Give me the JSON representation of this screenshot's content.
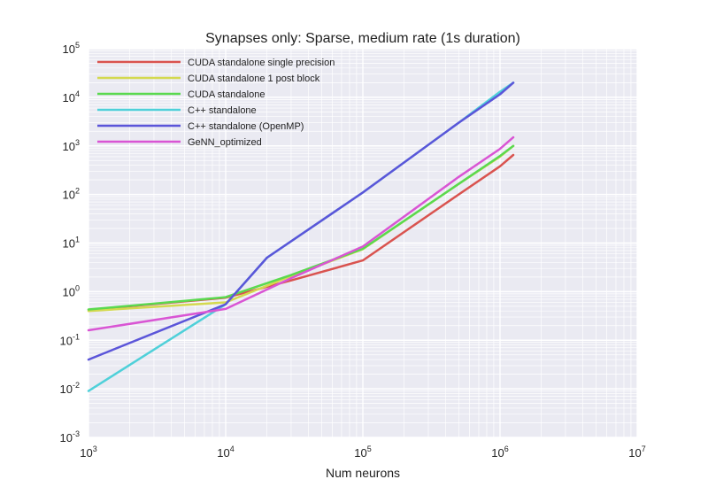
{
  "chart_data": {
    "type": "line",
    "title": "Synapses only: Sparse, medium rate (1s duration)",
    "xlabel": "Num neurons",
    "ylabel": "",
    "x_scale": "log",
    "y_scale": "log",
    "xlim": [
      1000,
      10000000
    ],
    "ylim": [
      0.001,
      100000
    ],
    "x_ticks": [
      {
        "base": "10",
        "exp": "3",
        "value": 1000
      },
      {
        "base": "10",
        "exp": "4",
        "value": 10000
      },
      {
        "base": "10",
        "exp": "5",
        "value": 100000
      },
      {
        "base": "10",
        "exp": "6",
        "value": 1000000
      },
      {
        "base": "10",
        "exp": "7",
        "value": 10000000
      }
    ],
    "y_ticks": [
      {
        "base": "10",
        "exp": "-3",
        "value": 0.001
      },
      {
        "base": "10",
        "exp": "-2",
        "value": 0.01
      },
      {
        "base": "10",
        "exp": "-1",
        "value": 0.1
      },
      {
        "base": "10",
        "exp": "0",
        "value": 1
      },
      {
        "base": "10",
        "exp": "1",
        "value": 10
      },
      {
        "base": "10",
        "exp": "2",
        "value": 100
      },
      {
        "base": "10",
        "exp": "3",
        "value": 1000
      },
      {
        "base": "10",
        "exp": "4",
        "value": 10000
      },
      {
        "base": "10",
        "exp": "5",
        "value": 100000
      }
    ],
    "grid": true,
    "legend_position": "top-left",
    "background": "#eaeaf2",
    "series": [
      {
        "name": "CUDA standalone single precision",
        "color": "#d9534f",
        "x": [
          1000,
          10000,
          30000,
          100000,
          500000,
          1000000,
          1250000
        ],
        "y": [
          0.42,
          0.75,
          1.7,
          4.4,
          100,
          380,
          650
        ]
      },
      {
        "name": "CUDA standalone 1 post block",
        "color": "#d4d94f",
        "x": [
          1000,
          10000,
          30000,
          100000,
          500000,
          1000000,
          1250000
        ],
        "y": [
          0.4,
          0.6,
          2.1,
          7.5,
          165,
          600,
          1000
        ]
      },
      {
        "name": "CUDA standalone",
        "color": "#5ad94f",
        "x": [
          1000,
          10000,
          30000,
          100000,
          500000,
          1000000,
          1250000
        ],
        "y": [
          0.43,
          0.77,
          2.2,
          7.6,
          165,
          620,
          1000
        ]
      },
      {
        "name": "C++ standalone",
        "color": "#4fd0d9",
        "x": [
          1000,
          10000,
          20000,
          100000,
          500000,
          1000000,
          1250000
        ],
        "y": [
          0.009,
          0.55,
          5,
          110,
          3000,
          13000,
          20000
        ]
      },
      {
        "name": "C++ standalone (OpenMP)",
        "color": "#5b55d9",
        "x": [
          1000,
          10000,
          20000,
          100000,
          500000,
          1000000,
          1250000
        ],
        "y": [
          0.04,
          0.55,
          5,
          110,
          3000,
          11500,
          20000
        ]
      },
      {
        "name": "GeNN_optimized",
        "color": "#d955d4",
        "x": [
          1000,
          10000,
          30000,
          100000,
          500000,
          1000000,
          1250000
        ],
        "y": [
          0.16,
          0.44,
          1.9,
          8.5,
          230,
          870,
          1500
        ]
      }
    ]
  }
}
